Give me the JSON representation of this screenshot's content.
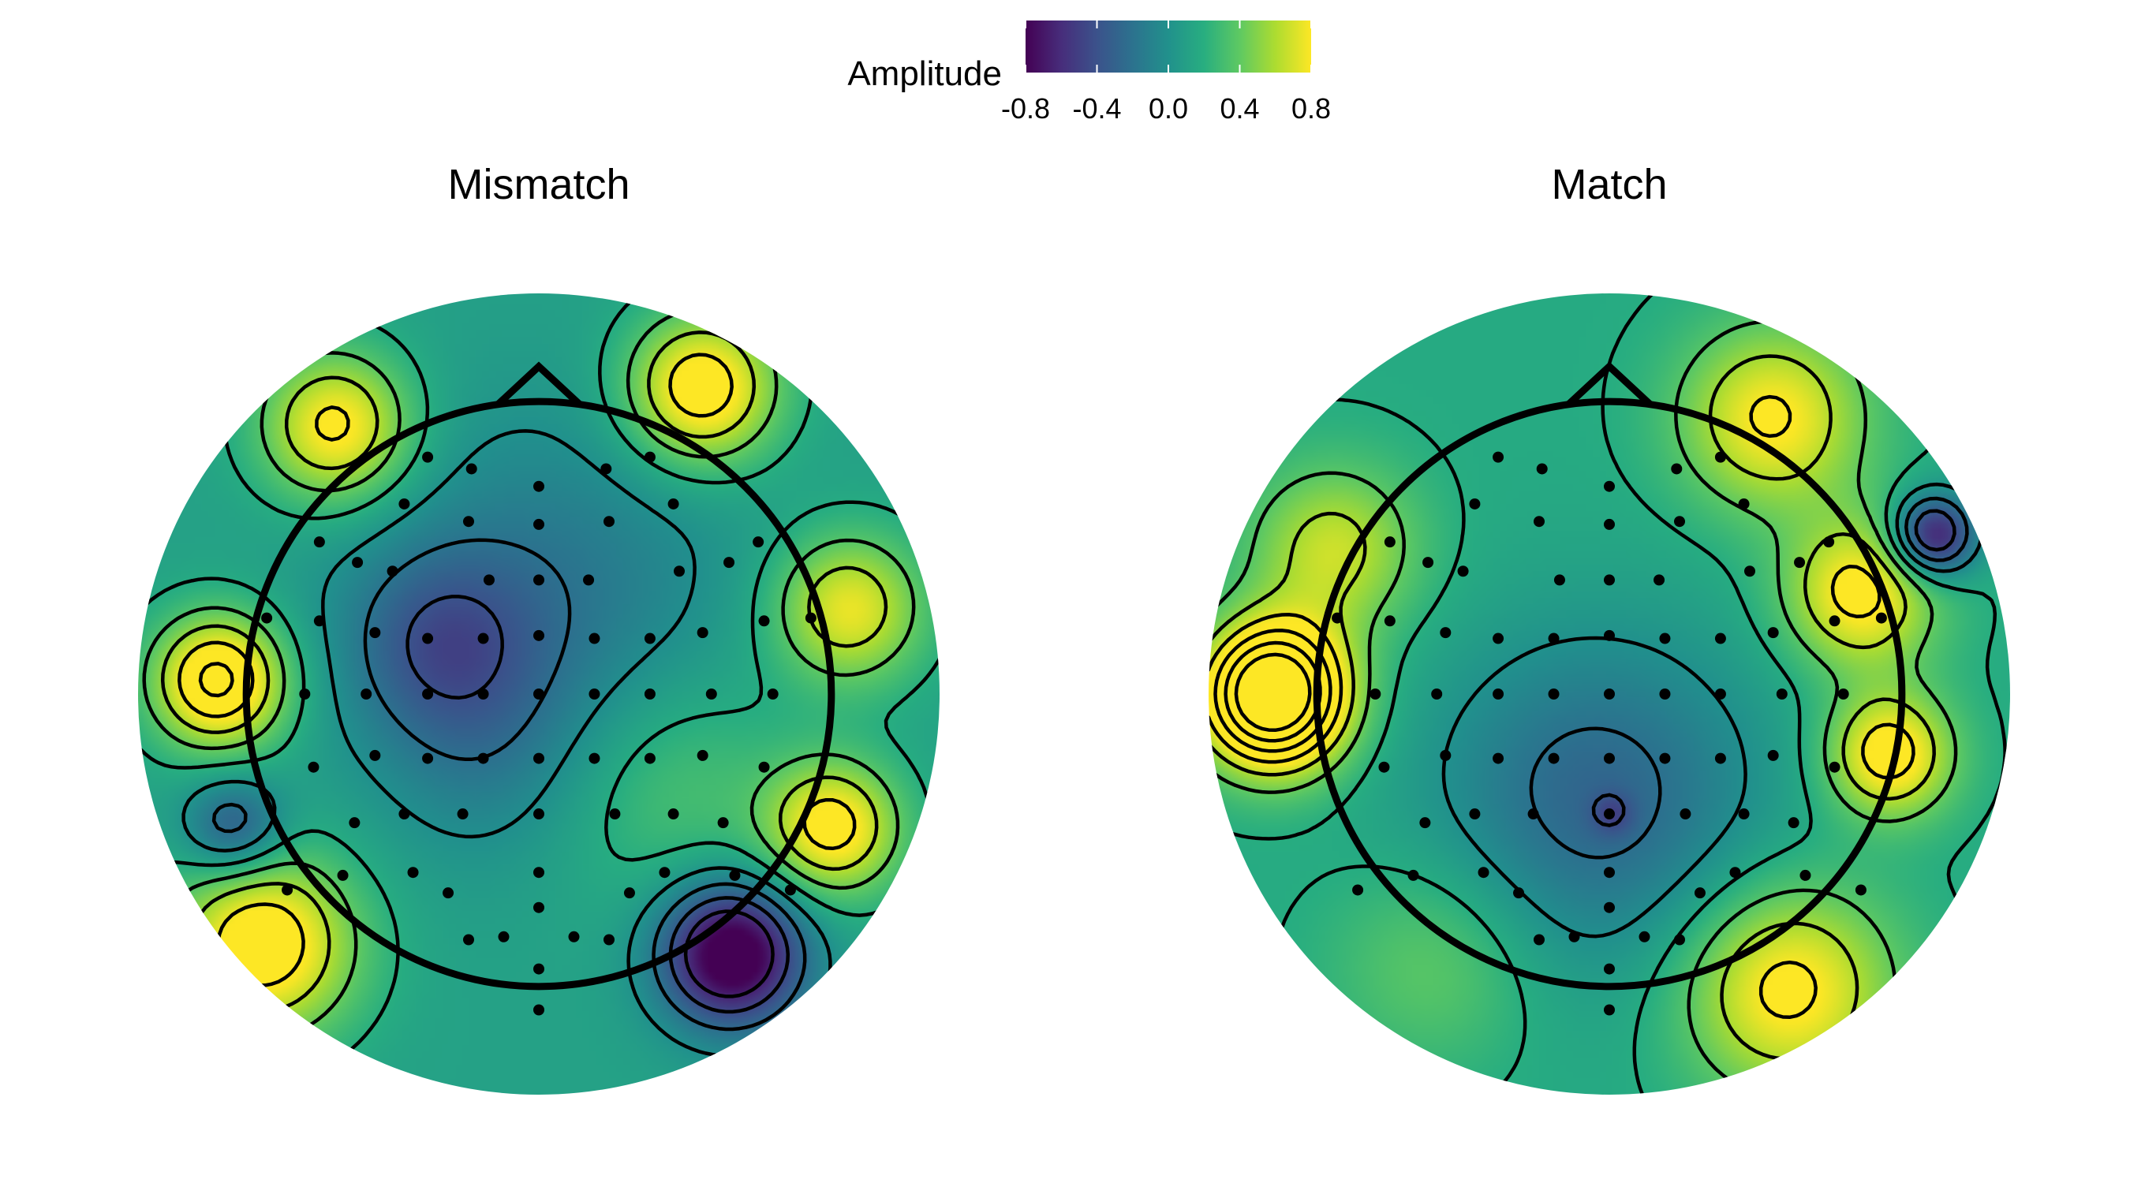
{
  "chart_data": {
    "type": "heatmap",
    "subtype": "eeg-topographic-map",
    "colormap": "viridis",
    "legend": {
      "title": "Amplitude",
      "range": [
        -0.8,
        0.8
      ],
      "ticks": [
        "-0.8",
        "-0.4",
        "0.0",
        "0.4",
        "0.8"
      ],
      "position": "top-center"
    },
    "contours": {
      "solid": "zero-or-positive",
      "dashed": "negative"
    },
    "panels": [
      {
        "title": "Mismatch",
        "features": [
          {
            "u": 0.0,
            "v": 0.3,
            "amp": -0.3,
            "sigma": 0.45
          },
          {
            "u": -0.35,
            "v": 0.18,
            "amp": -0.35,
            "sigma": 0.22
          },
          {
            "u": -0.2,
            "v": -0.2,
            "amp": -0.15,
            "sigma": 0.25
          },
          {
            "u": -1.1,
            "v": 0.05,
            "amp": 0.95,
            "sigma": 0.16
          },
          {
            "u": -0.7,
            "v": 0.92,
            "amp": 0.75,
            "sigma": 0.18
          },
          {
            "u": 0.55,
            "v": 1.05,
            "amp": 0.85,
            "sigma": 0.18
          },
          {
            "u": 1.05,
            "v": 0.3,
            "amp": 0.65,
            "sigma": 0.18
          },
          {
            "u": 1.0,
            "v": -0.45,
            "amp": 0.75,
            "sigma": 0.16
          },
          {
            "u": -0.95,
            "v": -0.85,
            "amp": 0.85,
            "sigma": 0.22
          },
          {
            "u": 0.65,
            "v": -0.88,
            "amp": -1.1,
            "sigma": 0.17
          },
          {
            "u": -1.05,
            "v": -0.45,
            "amp": -0.5,
            "sigma": 0.12
          },
          {
            "u": 0.45,
            "v": -0.3,
            "amp": 0.25,
            "sigma": 0.3
          }
        ],
        "base": 0.12
      },
      {
        "title": "Match",
        "features": [
          {
            "u": -0.05,
            "v": -0.35,
            "amp": -0.45,
            "sigma": 0.4
          },
          {
            "u": 0.0,
            "v": -0.4,
            "amp": -0.25,
            "sigma": 0.05
          },
          {
            "u": -1.15,
            "v": 0.0,
            "amp": 1.6,
            "sigma": 0.17
          },
          {
            "u": -0.95,
            "v": 0.5,
            "amp": 0.5,
            "sigma": 0.2
          },
          {
            "u": 0.55,
            "v": 0.95,
            "amp": 0.65,
            "sigma": 0.22
          },
          {
            "u": 1.1,
            "v": 0.55,
            "amp": -0.9,
            "sigma": 0.1
          },
          {
            "u": 0.85,
            "v": 0.35,
            "amp": 0.7,
            "sigma": 0.18
          },
          {
            "u": 0.95,
            "v": -0.2,
            "amp": 0.75,
            "sigma": 0.15
          },
          {
            "u": 0.6,
            "v": -1.0,
            "amp": 0.7,
            "sigma": 0.25
          },
          {
            "u": -0.6,
            "v": -0.9,
            "amp": 0.25,
            "sigma": 0.25
          }
        ],
        "base": 0.18
      }
    ],
    "electrodes": [
      [
        -0.23,
        0.77
      ],
      [
        0.0,
        0.71
      ],
      [
        0.23,
        0.77
      ],
      [
        -0.46,
        0.65
      ],
      [
        -0.24,
        0.59
      ],
      [
        0.0,
        0.58
      ],
      [
        0.24,
        0.59
      ],
      [
        0.46,
        0.65
      ],
      [
        -0.62,
        0.45
      ],
      [
        -0.5,
        0.42
      ],
      [
        -0.17,
        0.39
      ],
      [
        0.0,
        0.39
      ],
      [
        0.17,
        0.39
      ],
      [
        0.48,
        0.42
      ],
      [
        0.65,
        0.45
      ],
      [
        -0.75,
        0.25
      ],
      [
        -0.56,
        0.21
      ],
      [
        -0.38,
        0.19
      ],
      [
        -0.19,
        0.19
      ],
      [
        0.0,
        0.2
      ],
      [
        0.19,
        0.19
      ],
      [
        0.38,
        0.19
      ],
      [
        0.56,
        0.21
      ],
      [
        0.77,
        0.25
      ],
      [
        -0.8,
        0.0
      ],
      [
        -0.59,
        0.0
      ],
      [
        -0.38,
        0.0
      ],
      [
        -0.19,
        0.0
      ],
      [
        0.0,
        0.0
      ],
      [
        0.19,
        0.0
      ],
      [
        0.38,
        0.0
      ],
      [
        0.59,
        0.0
      ],
      [
        0.8,
        0.0
      ],
      [
        -0.77,
        -0.25
      ],
      [
        -0.56,
        -0.21
      ],
      [
        -0.38,
        -0.22
      ],
      [
        -0.19,
        -0.22
      ],
      [
        0.0,
        -0.22
      ],
      [
        0.19,
        -0.22
      ],
      [
        0.38,
        -0.22
      ],
      [
        0.56,
        -0.21
      ],
      [
        0.77,
        -0.25
      ],
      [
        -0.63,
        -0.44
      ],
      [
        -0.46,
        -0.41
      ],
      [
        -0.26,
        -0.41
      ],
      [
        0.0,
        -0.41
      ],
      [
        0.26,
        -0.41
      ],
      [
        0.46,
        -0.41
      ],
      [
        0.63,
        -0.44
      ],
      [
        -0.67,
        -0.62
      ],
      [
        -0.43,
        -0.61
      ],
      [
        0.0,
        -0.61
      ],
      [
        0.43,
        -0.61
      ],
      [
        0.67,
        -0.62
      ],
      [
        -0.31,
        -0.68
      ],
      [
        0.0,
        -0.73
      ],
      [
        0.31,
        -0.68
      ],
      [
        -0.24,
        -0.84
      ],
      [
        0.0,
        -0.94
      ],
      [
        0.24,
        -0.84
      ],
      [
        0.0,
        -1.08
      ],
      [
        -0.86,
        -0.67
      ],
      [
        0.86,
        -0.67
      ],
      [
        -0.93,
        0.26
      ],
      [
        0.93,
        0.26
      ],
      [
        -0.75,
        0.52
      ],
      [
        0.75,
        0.52
      ],
      [
        -0.38,
        0.81
      ],
      [
        0.38,
        0.81
      ],
      [
        -0.12,
        -0.83
      ],
      [
        0.12,
        -0.83
      ]
    ]
  }
}
